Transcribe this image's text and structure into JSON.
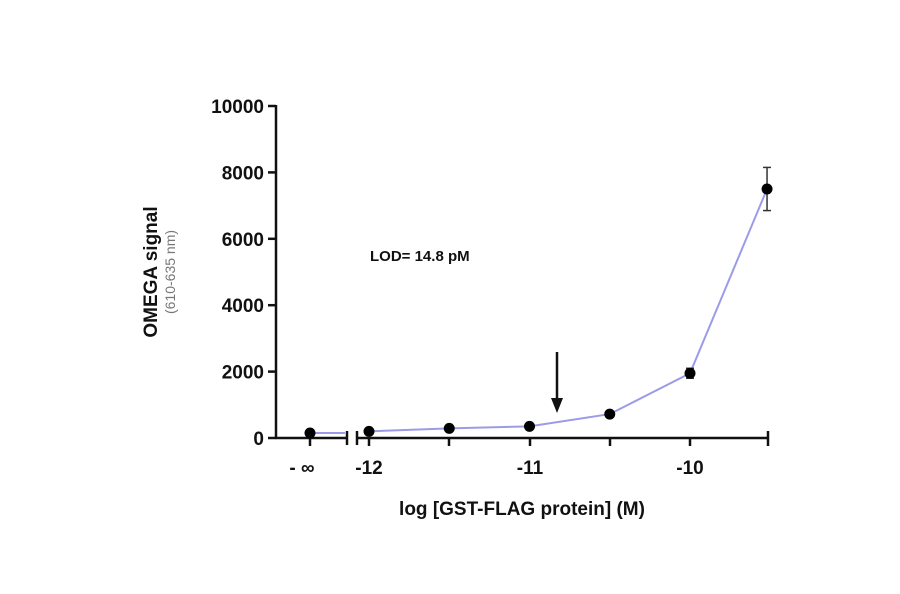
{
  "chart_data": {
    "type": "line",
    "title": "",
    "xlabel": "log [GST-FLAG protein] (M)",
    "ylabel": "OMEGA signal",
    "ylabel_sub": "(610-635 nm)",
    "ylim": [
      0,
      10000
    ],
    "yticks": [
      "0",
      "2000",
      "4000",
      "6000",
      "8000",
      "10000"
    ],
    "xticks": [
      "- ∞",
      "-12",
      "-11",
      "-10"
    ],
    "x_axis_break": true,
    "grid": false,
    "legend": "none",
    "annotation": "LOD=  14.8 pM",
    "lod_arrow_x": -10.83,
    "series": [
      {
        "name": "GST-FLAG protein",
        "color": "#9b9be8",
        "marker_color": "#000000",
        "x": [
          "-inf",
          -12,
          -11.5,
          -11,
          -10.5,
          -10,
          -9.52
        ],
        "values": [
          150,
          200,
          290,
          350,
          720,
          1950,
          7500
        ],
        "error": [
          0,
          0,
          0,
          0,
          0,
          150,
          650
        ]
      }
    ]
  }
}
